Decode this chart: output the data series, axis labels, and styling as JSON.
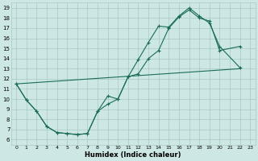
{
  "xlabel": "Humidex (Indice chaleur)",
  "xlim": [
    -0.5,
    23.5
  ],
  "ylim": [
    5.5,
    19.5
  ],
  "xticks": [
    0,
    1,
    2,
    3,
    4,
    5,
    6,
    7,
    8,
    9,
    10,
    11,
    12,
    13,
    14,
    15,
    16,
    17,
    18,
    19,
    20,
    21,
    22,
    23
  ],
  "yticks": [
    6,
    7,
    8,
    9,
    10,
    11,
    12,
    13,
    14,
    15,
    16,
    17,
    18,
    19
  ],
  "bg_color": "#cde8e4",
  "grid_color": "#a8c8c4",
  "line_color": "#1a6b5a",
  "curve1_x": [
    0,
    1,
    2,
    3,
    4,
    5,
    6,
    7,
    8,
    9,
    10,
    11,
    12,
    13,
    14,
    15,
    16,
    17,
    18,
    19,
    20,
    22
  ],
  "curve1_y": [
    11.5,
    9.9,
    8.8,
    7.3,
    6.7,
    6.6,
    6.5,
    6.6,
    8.8,
    10.3,
    10.0,
    12.2,
    13.9,
    15.6,
    17.2,
    17.1,
    18.2,
    19.0,
    18.2,
    17.5,
    15.2,
    13.1
  ],
  "curve2_x": [
    0,
    1,
    2,
    3,
    4,
    5,
    6,
    7,
    8,
    9,
    10,
    11,
    12,
    13,
    14,
    15,
    16,
    17,
    18,
    19,
    20,
    22
  ],
  "curve2_y": [
    11.5,
    9.9,
    8.8,
    7.3,
    6.7,
    6.6,
    6.5,
    6.6,
    8.8,
    9.5,
    10.0,
    12.2,
    12.5,
    14.0,
    14.8,
    17.0,
    18.1,
    18.8,
    18.0,
    17.7,
    14.8,
    15.2
  ],
  "curve3_x": [
    0,
    22
  ],
  "curve3_y": [
    11.5,
    13.0
  ]
}
